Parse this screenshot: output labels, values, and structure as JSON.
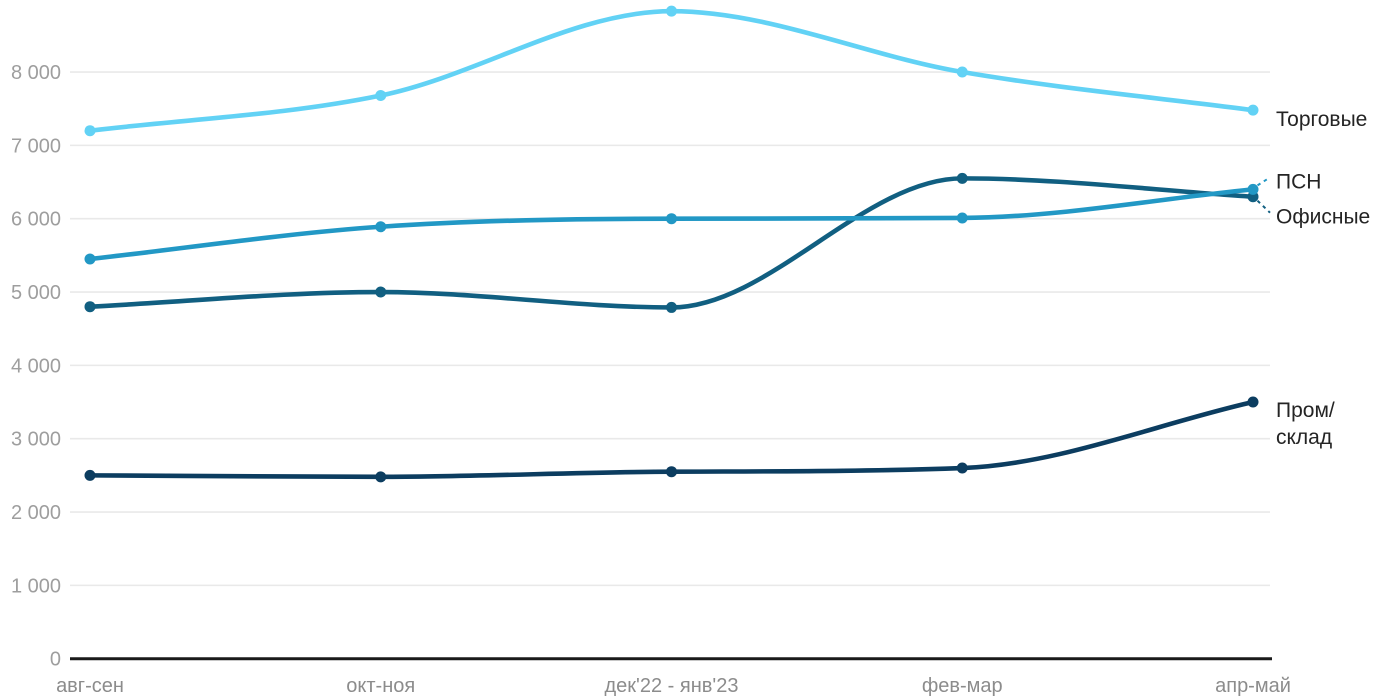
{
  "chart_data": {
    "type": "line",
    "title": "",
    "categories": [
      "авг-сен",
      "окт-ноя",
      "дек'22 - янв'23",
      "фев-мар",
      "апр-май"
    ],
    "series": [
      {
        "name": "Торговые",
        "slug": "torgovye",
        "color": "#62D2F5",
        "values": [
          7200,
          7680,
          8830,
          8000,
          7480
        ],
        "label_lines": [
          "Торговые"
        ],
        "label_dy": 9,
        "leader": false
      },
      {
        "name": "Офисные",
        "slug": "ofisnye",
        "color": "#115F81",
        "values": [
          4800,
          5000,
          4790,
          6550,
          6300
        ],
        "label_lines": [
          "Офисные"
        ],
        "label_dy": 20,
        "leader": true
      },
      {
        "name": "ПСН",
        "slug": "psn",
        "color": "#2298C5",
        "values": [
          5450,
          5890,
          6000,
          6010,
          6400
        ],
        "label_lines": [
          "ПСН"
        ],
        "label_dy": -8,
        "leader": true
      },
      {
        "name": "Пром/склад",
        "slug": "prom-sklad",
        "color": "#0C3D60",
        "values": [
          2500,
          2480,
          2550,
          2600,
          3500
        ],
        "label_lines": [
          "Пром/",
          "склад"
        ],
        "label_dy": 8,
        "leader": false
      }
    ],
    "yticks": [
      0,
      1000,
      2000,
      3000,
      4000,
      5000,
      6000,
      7000,
      8000
    ],
    "ylim": [
      0,
      9000
    ],
    "grid": "horizontal-light",
    "legend_position": "right-end-labels",
    "colors": {
      "background": "#FFFFFF",
      "grid": "#E9E9E9",
      "axis": "#1A1A1A",
      "ytick_text": "#9E9E9E",
      "xtick_text": "#8C8C8C",
      "label_text": "#242424"
    }
  }
}
